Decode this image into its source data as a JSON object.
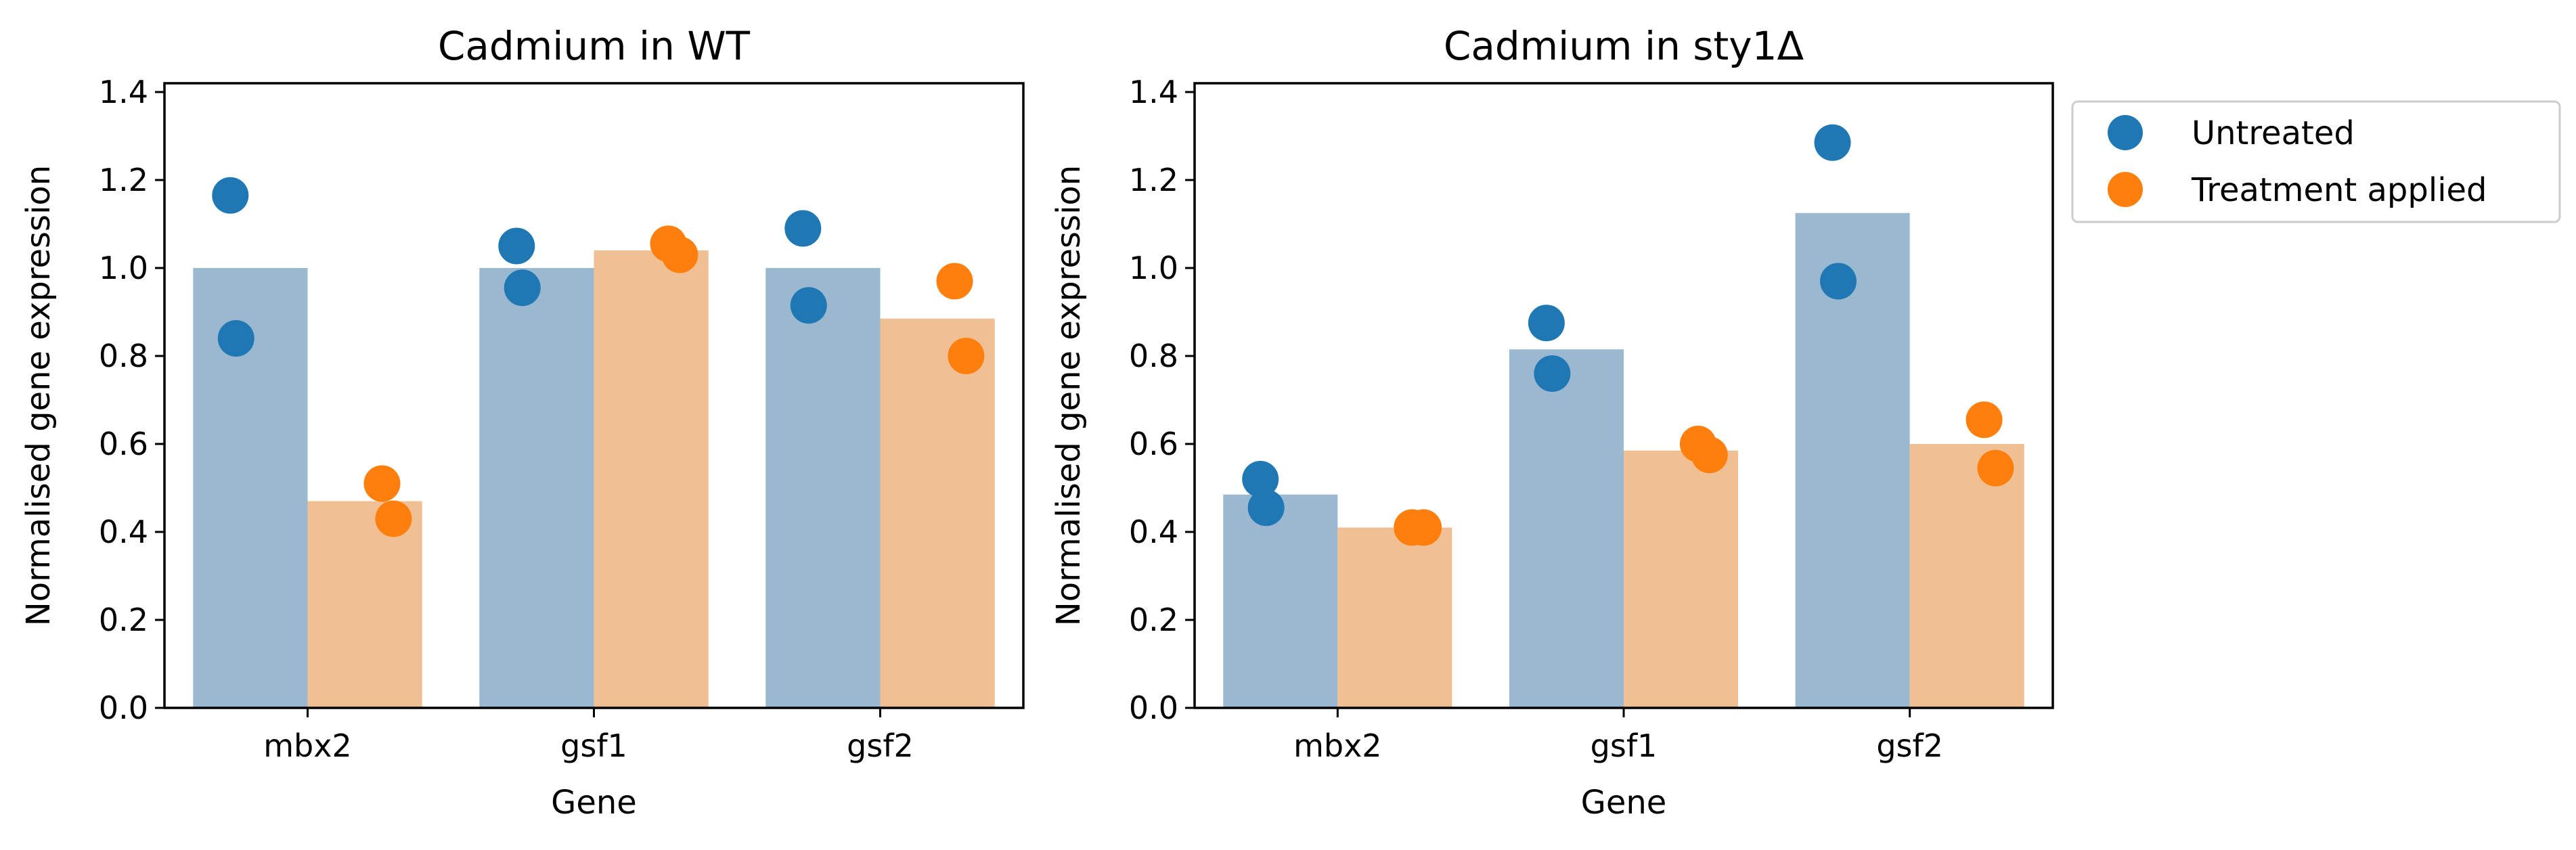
{
  "colors": {
    "untreated_bar": "#9ab8d0",
    "treated_bar": "#f0c094",
    "untreated_point": "#1f77b4",
    "treated_point": "#ff7f0e"
  },
  "legend": {
    "position": "outside-right",
    "items": [
      {
        "label": "Untreated",
        "color": "#1f77b4"
      },
      {
        "label": "Treatment applied",
        "color": "#ff7f0e"
      }
    ]
  },
  "chart_data": [
    {
      "type": "bar",
      "title": "Cadmium in WT",
      "xlabel": "Gene",
      "ylabel": "Normalised gene expression",
      "categories": [
        "mbx2",
        "gsf1",
        "gsf2"
      ],
      "ylim": [
        0,
        1.42
      ],
      "yticks": [
        "0.0",
        "0.2",
        "0.4",
        "0.6",
        "0.8",
        "1.0",
        "1.2",
        "1.4"
      ],
      "grid": false,
      "series": [
        {
          "name": "Untreated",
          "values": [
            1.0,
            1.0,
            1.0
          ],
          "points": [
            [
              1.165,
              0.84
            ],
            [
              1.05,
              0.955
            ],
            [
              1.09,
              0.915
            ]
          ]
        },
        {
          "name": "Treatment applied",
          "values": [
            0.47,
            1.04,
            0.885
          ],
          "points": [
            [
              0.51,
              0.43
            ],
            [
              1.055,
              1.03
            ],
            [
              0.97,
              0.8
            ]
          ]
        }
      ]
    },
    {
      "type": "bar",
      "title": "Cadmium in sty1Δ",
      "xlabel": "Gene",
      "ylabel": "Normalised gene expression",
      "categories": [
        "mbx2",
        "gsf1",
        "gsf2"
      ],
      "ylim": [
        0,
        1.42
      ],
      "yticks": [
        "0.0",
        "0.2",
        "0.4",
        "0.6",
        "0.8",
        "1.0",
        "1.2",
        "1.4"
      ],
      "grid": false,
      "series": [
        {
          "name": "Untreated",
          "values": [
            0.485,
            0.815,
            1.125
          ],
          "points": [
            [
              0.52,
              0.455
            ],
            [
              0.875,
              0.76
            ],
            [
              1.285,
              0.97
            ]
          ]
        },
        {
          "name": "Treatment applied",
          "values": [
            0.41,
            0.585,
            0.6
          ],
          "points": [
            [
              0.41,
              0.41
            ],
            [
              0.6,
              0.575
            ],
            [
              0.655,
              0.545
            ]
          ]
        }
      ]
    }
  ]
}
